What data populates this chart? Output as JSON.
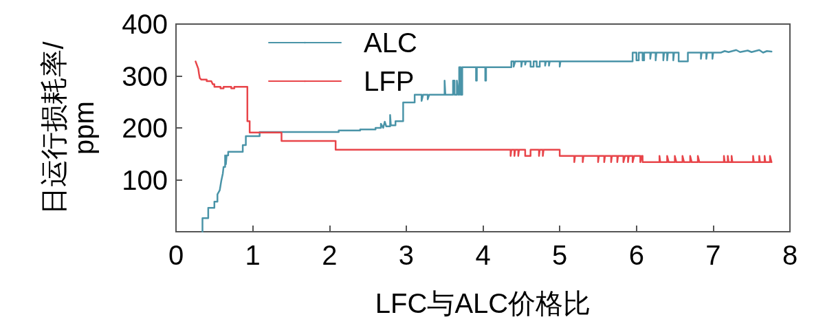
{
  "chart_data": {
    "type": "line",
    "xlabel": "LFC与ALC价格比",
    "ylabel": "日运行损耗率/ ppm",
    "xlim": [
      0,
      8
    ],
    "xticks": [
      0,
      1,
      2,
      3,
      4,
      5,
      6,
      7,
      8
    ],
    "ylim": [
      0,
      400
    ],
    "yticks": [
      100,
      200,
      300,
      400
    ],
    "legend": "top left",
    "series": [
      {
        "name": "ALC",
        "color": "#4a94a8",
        "x": [
          0.345,
          0.345,
          0.42,
          0.42,
          0.5,
          0.5,
          0.54,
          0.54,
          0.57,
          0.59,
          0.61,
          0.62,
          0.64,
          0.64,
          0.65,
          0.66,
          0.68,
          0.68,
          0.87,
          0.87,
          0.91,
          0.91,
          1.09,
          1.09,
          2.12,
          2.12,
          2.4,
          2.4,
          2.6,
          2.6,
          2.67,
          2.67,
          2.7,
          2.72,
          2.74,
          2.79,
          2.79,
          2.8,
          2.86,
          2.86,
          2.96,
          2.96,
          3.11,
          3.11,
          3.2,
          3.2,
          3.22,
          3.28,
          3.28,
          3.3,
          3.5,
          3.5,
          3.51,
          3.61,
          3.61,
          3.63,
          3.63,
          3.66,
          3.66,
          3.68,
          3.69,
          3.69,
          3.71,
          3.71,
          3.73,
          3.73,
          3.91,
          3.91,
          3.92,
          3.92,
          4.03,
          4.03,
          4.04,
          4.04,
          4.37,
          4.37,
          4.4,
          4.4,
          4.42,
          4.5,
          4.5,
          4.51,
          4.55,
          4.55,
          4.56,
          4.62,
          4.62,
          4.66,
          4.66,
          4.7,
          4.7,
          4.74,
          4.74,
          4.81,
          4.81,
          4.82,
          4.86,
          4.86,
          4.87,
          5.0,
          5.0,
          5.01,
          5.95,
          5.95,
          6.0,
          6.0,
          6.03,
          6.03,
          6.08,
          6.08,
          6.1,
          6.1,
          6.18,
          6.18,
          6.19,
          6.25,
          6.25,
          6.26,
          6.35,
          6.35,
          6.36,
          6.4,
          6.4,
          6.41,
          6.48,
          6.48,
          6.49,
          6.55,
          6.55,
          6.67,
          6.67,
          6.84,
          6.84,
          6.85,
          6.91,
          6.91,
          6.92,
          6.99,
          6.99,
          7.0,
          7.1,
          7.15,
          7.2,
          7.3,
          7.35,
          7.45,
          7.5,
          7.6,
          7.65,
          7.7,
          7.76
        ],
        "values": [
          0,
          26,
          26,
          46,
          46,
          58,
          58,
          72,
          80,
          98,
          112,
          125,
          125,
          147,
          130,
          147,
          147,
          154,
          154,
          167,
          167,
          184,
          184,
          192,
          192,
          195,
          195,
          197,
          197,
          200,
          200,
          208,
          200,
          212,
          203,
          203,
          225,
          205,
          205,
          213,
          213,
          249,
          249,
          264,
          264,
          252,
          264,
          264,
          255,
          264,
          264,
          291,
          264,
          264,
          291,
          291,
          264,
          264,
          291,
          264,
          264,
          317,
          317,
          264,
          264,
          317,
          317,
          291,
          291,
          317,
          317,
          291,
          291,
          317,
          317,
          328,
          328,
          318,
          328,
          328,
          318,
          328,
          328,
          322,
          328,
          328,
          318,
          318,
          328,
          328,
          318,
          318,
          328,
          328,
          320,
          328,
          328,
          320,
          328,
          328,
          318,
          328,
          328,
          345,
          345,
          330,
          330,
          345,
          345,
          330,
          330,
          345,
          345,
          333,
          345,
          345,
          330,
          345,
          345,
          330,
          345,
          345,
          330,
          345,
          345,
          330,
          345,
          345,
          328,
          328,
          345,
          345,
          333,
          345,
          345,
          333,
          345,
          345,
          333,
          345,
          345,
          348,
          346,
          350,
          346,
          349,
          346,
          350,
          345,
          348,
          347
        ]
      },
      {
        "name": "LFP",
        "color": "#e8454a",
        "x": [
          0.255,
          0.27,
          0.29,
          0.3,
          0.31,
          0.33,
          0.4,
          0.4,
          0.46,
          0.48,
          0.5,
          0.5,
          0.58,
          0.58,
          0.62,
          0.62,
          0.72,
          0.72,
          0.76,
          0.76,
          0.93,
          0.93,
          0.96,
          0.96,
          1.375,
          1.375,
          2.08,
          2.08,
          4.36,
          4.36,
          4.37,
          4.41,
          4.41,
          4.42,
          4.46,
          4.46,
          4.47,
          4.55,
          4.55,
          4.62,
          4.62,
          4.73,
          4.73,
          4.74,
          4.78,
          4.78,
          4.79,
          5.0,
          5.0,
          5.19,
          5.19,
          5.2,
          5.3,
          5.3,
          5.31,
          5.5,
          5.5,
          5.51,
          5.58,
          5.58,
          5.59,
          5.67,
          5.67,
          5.68,
          5.75,
          5.75,
          5.76,
          5.83,
          5.83,
          5.85,
          5.89,
          5.89,
          5.9,
          5.95,
          5.95,
          5.97,
          6.05,
          6.05,
          6.07,
          6.08,
          6.08,
          6.3,
          6.3,
          6.31,
          6.4,
          6.4,
          6.42,
          6.5,
          6.5,
          6.52,
          6.6,
          6.6,
          6.62,
          6.7,
          6.7,
          6.72,
          6.8,
          6.8,
          6.82,
          7.14,
          7.14,
          7.15,
          7.19,
          7.19,
          7.2,
          7.24,
          7.24,
          7.25,
          7.52,
          7.52,
          7.53,
          7.6,
          7.6,
          7.61,
          7.67,
          7.67,
          7.68,
          7.74,
          7.74,
          7.76
        ],
        "values": [
          328,
          322,
          314,
          304,
          296,
          293,
          293,
          290,
          290,
          284,
          284,
          279,
          279,
          276,
          276,
          279,
          279,
          276,
          276,
          279,
          279,
          213,
          213,
          191,
          191,
          175,
          175,
          158,
          158,
          146,
          158,
          158,
          146,
          158,
          158,
          146,
          158,
          158,
          146,
          146,
          158,
          158,
          146,
          158,
          158,
          146,
          158,
          158,
          146,
          146,
          134,
          146,
          146,
          134,
          146,
          146,
          134,
          146,
          146,
          134,
          146,
          146,
          134,
          146,
          146,
          134,
          146,
          146,
          134,
          146,
          146,
          134,
          146,
          146,
          134,
          146,
          146,
          134,
          146,
          146,
          134,
          134,
          146,
          134,
          134,
          146,
          134,
          134,
          146,
          134,
          134,
          146,
          134,
          134,
          146,
          134,
          134,
          146,
          134,
          134,
          146,
          134,
          134,
          146,
          134,
          134,
          146,
          134,
          134,
          146,
          134,
          134,
          146,
          134,
          134,
          146,
          134,
          134,
          146,
          134
        ]
      }
    ]
  }
}
